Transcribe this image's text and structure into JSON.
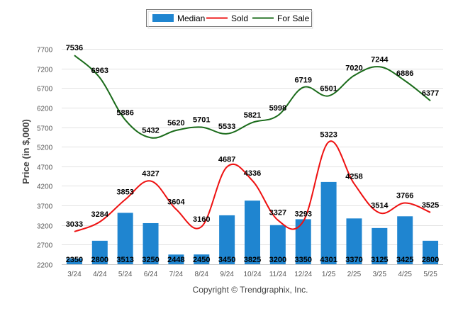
{
  "chart_data": {
    "type": "bar",
    "categories": [
      "3/24",
      "4/24",
      "5/24",
      "6/24",
      "7/24",
      "8/24",
      "9/24",
      "10/24",
      "11/24",
      "12/24",
      "1/25",
      "2/25",
      "3/25",
      "4/25",
      "5/25"
    ],
    "series": [
      {
        "name": "Median",
        "type": "bar",
        "color": "#1f85d0",
        "values": [
          2350,
          2800,
          3513,
          3250,
          2448,
          2450,
          3450,
          3825,
          3200,
          3350,
          4301,
          3370,
          3125,
          3425,
          2800
        ]
      },
      {
        "name": "Sold",
        "type": "line",
        "color": "#ee1111",
        "values": [
          3033,
          3284,
          3853,
          4327,
          3604,
          3160,
          4687,
          4336,
          3327,
          3293,
          5323,
          4258,
          3514,
          3766,
          3525
        ]
      },
      {
        "name": "For Sale",
        "type": "line",
        "color": "#1a6b1a",
        "values": [
          7536,
          6963,
          5886,
          5432,
          5620,
          5701,
          5533,
          5821,
          5998,
          6719,
          6501,
          7020,
          7244,
          6886,
          6377
        ]
      }
    ],
    "ylabel": "Price (in $,000)",
    "xlabel": "",
    "yticks": [
      2200,
      2700,
      3200,
      3700,
      4200,
      4700,
      5200,
      5700,
      6200,
      6700,
      7200,
      7700
    ],
    "ylim": [
      2200,
      7900
    ],
    "grid": true,
    "legend_position": "top-center"
  },
  "credit": "Copyright © Trendgraphix, Inc."
}
